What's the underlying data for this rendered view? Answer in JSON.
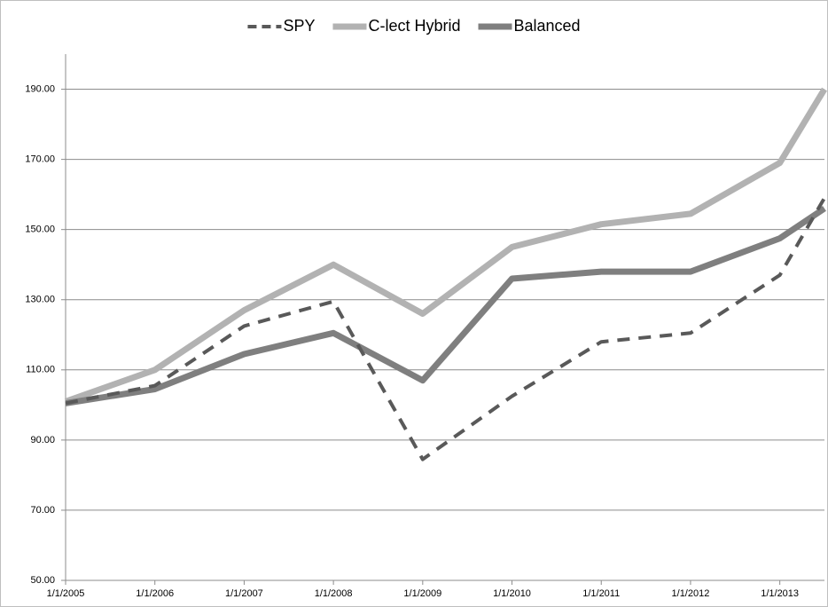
{
  "chart_data": {
    "type": "line",
    "x": [
      2005,
      2006,
      2007,
      2008,
      2009,
      2010,
      2011,
      2012,
      2013,
      2013.5
    ],
    "xlim": [
      2005,
      2013.5
    ],
    "xticks": [
      {
        "value": 2005,
        "label": "1/1/2005"
      },
      {
        "value": 2006,
        "label": "1/1/2006"
      },
      {
        "value": 2007,
        "label": "1/1/2007"
      },
      {
        "value": 2008,
        "label": "1/1/2008"
      },
      {
        "value": 2009,
        "label": "1/1/2009"
      },
      {
        "value": 2010,
        "label": "1/1/2010"
      },
      {
        "value": 2011,
        "label": "1/1/2011"
      },
      {
        "value": 2012,
        "label": "1/1/2012"
      },
      {
        "value": 2013,
        "label": "1/1/2013"
      }
    ],
    "ylim": [
      50,
      200
    ],
    "yticks": [
      {
        "value": 50,
        "label": "50.00"
      },
      {
        "value": 70,
        "label": "70.00"
      },
      {
        "value": 90,
        "label": "90.00"
      },
      {
        "value": 110,
        "label": "110.00"
      },
      {
        "value": 130,
        "label": "130.00"
      },
      {
        "value": 150,
        "label": "150.00"
      },
      {
        "value": 170,
        "label": "170.00"
      },
      {
        "value": 190,
        "label": "190.00"
      }
    ],
    "grid": true,
    "legend": "top",
    "series": [
      {
        "name": "SPY",
        "color": "#595959",
        "style": "dashed",
        "values": [
          100.5,
          105.5,
          122.5,
          129.5,
          84.5,
          102.5,
          118,
          120.5,
          137,
          159
        ]
      },
      {
        "name": "C-lect Hybrid",
        "color": "#b2b2b2",
        "style": "solid",
        "values": [
          101,
          110,
          127,
          140,
          126,
          145,
          151.5,
          154.5,
          169,
          190
        ]
      },
      {
        "name": "Balanced",
        "color": "#7f7f7f",
        "style": "solid",
        "values": [
          100.5,
          104.5,
          114.5,
          120.5,
          107,
          136,
          138,
          138,
          147.5,
          156
        ]
      }
    ]
  }
}
